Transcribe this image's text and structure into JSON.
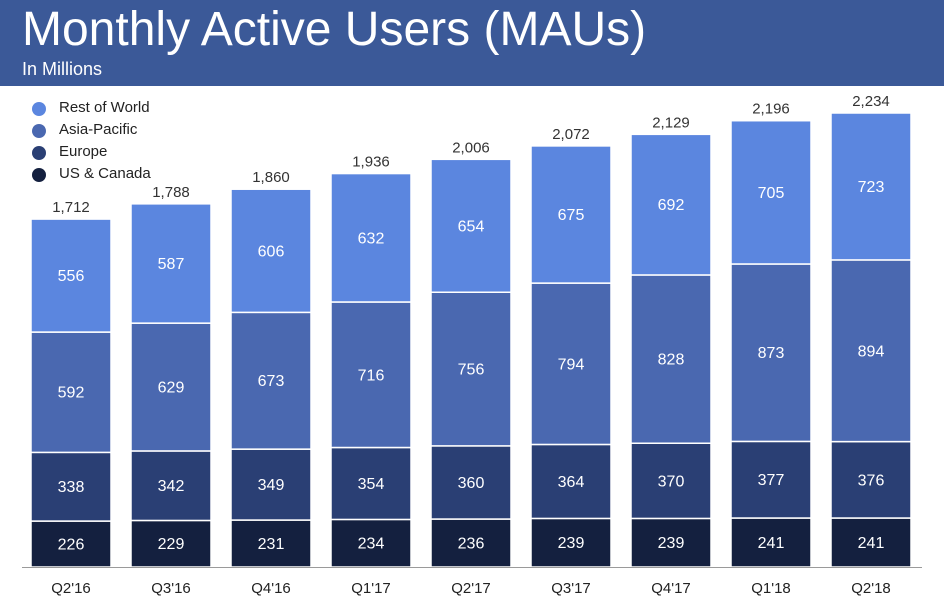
{
  "header": {
    "title": "Monthly Active Users (MAUs)",
    "subtitle": "In Millions"
  },
  "colors": {
    "header_bg": "#3B5998",
    "rest_of_world": "#5B86DF",
    "asia_pacific": "#4A68B0",
    "europe": "#2A3F74",
    "us_canada": "#14203F"
  },
  "chart_data": {
    "type": "bar",
    "stacked": true,
    "categories": [
      "Q2'16",
      "Q3'16",
      "Q4'16",
      "Q1'17",
      "Q2'17",
      "Q3'17",
      "Q4'17",
      "Q1'18",
      "Q2'18"
    ],
    "series": [
      {
        "name": "US & Canada",
        "color": "#14203F",
        "values": [
          226,
          229,
          231,
          234,
          236,
          239,
          239,
          241,
          241
        ]
      },
      {
        "name": "Europe",
        "color": "#2A3F74",
        "values": [
          338,
          342,
          349,
          354,
          360,
          364,
          370,
          377,
          376
        ]
      },
      {
        "name": "Asia-Pacific",
        "color": "#4A68B0",
        "values": [
          592,
          629,
          673,
          716,
          756,
          794,
          828,
          873,
          894
        ]
      },
      {
        "name": "Rest of World",
        "color": "#5B86DF",
        "values": [
          556,
          587,
          606,
          632,
          654,
          675,
          692,
          705,
          723
        ]
      }
    ],
    "totals": [
      "1,712",
      "1,788",
      "1,860",
      "1,936",
      "2,006",
      "2,072",
      "2,129",
      "2,196",
      "2,234"
    ],
    "legend_order": [
      "Rest of World",
      "Asia-Pacific",
      "Europe",
      "US & Canada"
    ],
    "legend_position": "top-left",
    "ylim": [
      0,
      2234
    ],
    "grid": false
  }
}
